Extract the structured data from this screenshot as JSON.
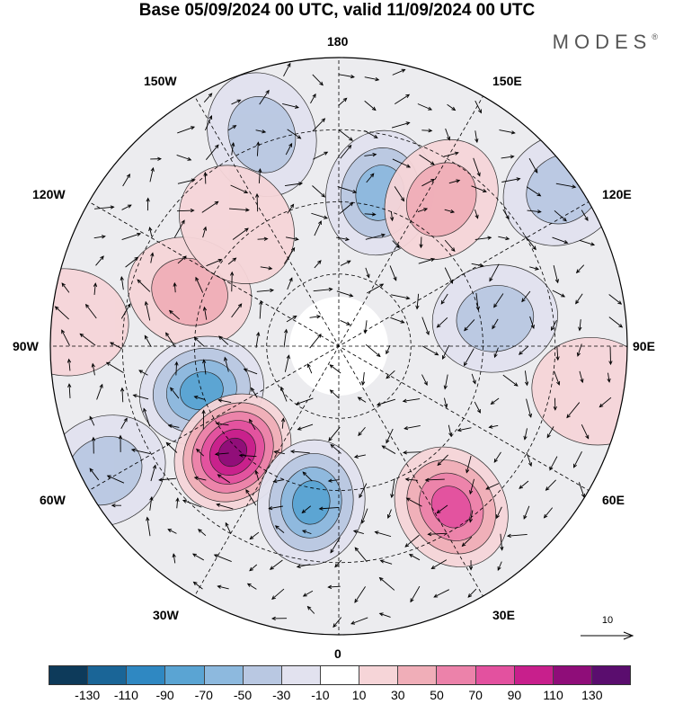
{
  "title": "Base 05/09/2024 00 UTC, valid 11/09/2024 00 UTC",
  "brand": "MODES",
  "brand_mark": "®",
  "longitude_labels": {
    "top": "180",
    "bottom": "0",
    "left": "90W",
    "right": "90E",
    "upper_left_1": "150W",
    "upper_left_2": "120W",
    "upper_right_1": "150E",
    "upper_right_2": "120E",
    "lower_left_1": "60W",
    "lower_left_2": "30W",
    "lower_right_1": "60E",
    "lower_right_2": "30E"
  },
  "vector_scale": {
    "label": "10"
  },
  "legend": {
    "colors": [
      "#0d3a5a",
      "#1a6597",
      "#2f88c2",
      "#5aa4d3",
      "#8db9de",
      "#b9c8e2",
      "#e2e2ef",
      "#ffffff",
      "#f6d5d8",
      "#f0aeb8",
      "#ec82aa",
      "#e3519f",
      "#c81f8c",
      "#8f0d79",
      "#5a0d6e"
    ],
    "ticks": [
      "-130",
      "-110",
      "-90",
      "-70",
      "-50",
      "-30",
      "-10",
      "10",
      "30",
      "50",
      "70",
      "90",
      "110",
      "130"
    ]
  },
  "anomaly_centers": [
    {
      "lon": -160,
      "r": 0.78,
      "value": -40
    },
    {
      "lon": 165,
      "r": 0.55,
      "value": -55
    },
    {
      "lon": -110,
      "r": 0.55,
      "value": 45
    },
    {
      "lon": -72,
      "r": 0.5,
      "value": -75
    },
    {
      "lon": -45,
      "r": 0.52,
      "value": 115
    },
    {
      "lon": -10,
      "r": 0.55,
      "value": -80
    },
    {
      "lon": 35,
      "r": 0.68,
      "value": 70
    },
    {
      "lon": 100,
      "r": 0.55,
      "value": -45
    },
    {
      "lon": 125,
      "r": 0.95,
      "value": -40
    },
    {
      "lon": 145,
      "r": 0.62,
      "value": 35
    },
    {
      "lon": -62,
      "r": 0.92,
      "value": -35
    },
    {
      "lon": -140,
      "r": 0.55,
      "value": 25
    },
    {
      "lon": 80,
      "r": 0.9,
      "value": 25
    },
    {
      "lon": -95,
      "r": 0.95,
      "value": 20
    }
  ]
}
